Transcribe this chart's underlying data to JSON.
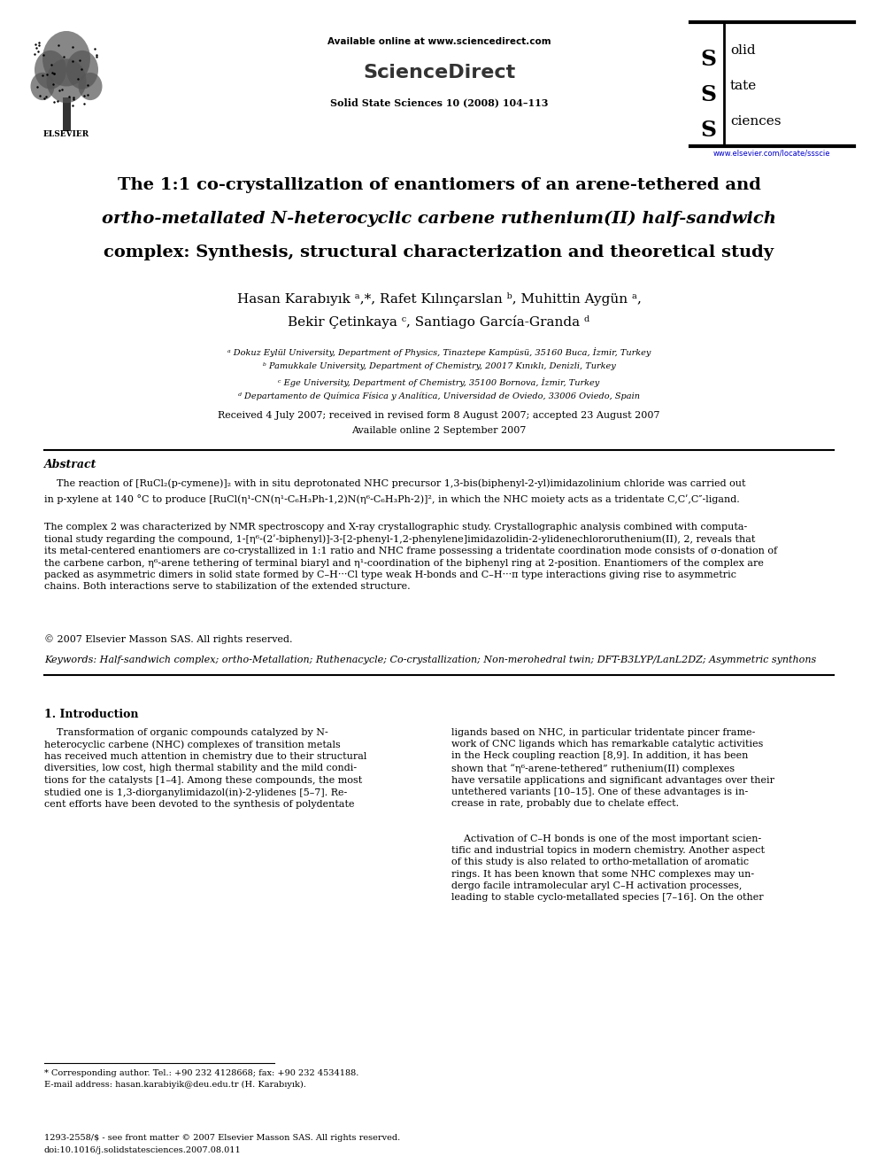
{
  "background_color": "#ffffff",
  "page_width": 9.92,
  "page_height": 13.23,
  "dpi": 100,
  "header": {
    "available_online_text": "Available online at www.sciencedirect.com",
    "sciencedirect_text": "ScienceDirect",
    "journal_text": "Solid State Sciences 10 (2008) 104–113",
    "elsevier_text": "ELSEVIER",
    "sss_url": "www.elsevier.com/locate/ssscie"
  },
  "title_line1": "The 1:1 co-crystallization of enantiomers of an arene-tethered and",
  "title_line2": "ortho-metallated N-heterocyclic carbene ruthenium(II) half-sandwich",
  "title_line3": "complex: Synthesis, structural characterization and theoretical study",
  "authors_line1": "Hasan Karabıyık ᵃ,*, Rafet Kılınçarslan ᵇ, Muhittin Aygün ᵃ,",
  "authors_line2": "Bekir Çetinkaya ᶜ, Santiago García-Granda ᵈ",
  "affiliations": [
    "ᵃ Dokuz Eylül University, Department of Physics, Tinaztepe Kampüsü, 35160 Buca, İzmir, Turkey",
    "ᵇ Pamukkale University, Department of Chemistry, 20017 Kınıklı, Denizli, Turkey",
    "ᶜ Ege University, Department of Chemistry, 35100 Bornova, İzmir, Turkey",
    "ᵈ Departamento de Química Física y Analítica, Universidad de Oviedo, 33006 Oviedo, Spain"
  ],
  "received_text": "Received 4 July 2007; received in revised form 8 August 2007; accepted 23 August 2007",
  "available_text": "Available online 2 September 2007",
  "abstract_title": "Abstract",
  "abstract_p1_indent": "    The reaction of [RuCl₂(p-cymene)]₂ with in situ deprotonated NHC precursor 1,3-bis(biphenyl-2-yl)imidazolinium chloride was carried out",
  "abstract_p1_line2": "in p-xylene at 140 °C to produce [RuCl(η¹-CN(η¹-C₆H₃Ph-1,2)N(η⁶-C₆H₃Ph-2)]², in which the NHC moiety acts as a tridentate C,Cʹ,C″-ligand.",
  "abstract_p2": "The complex 2 was characterized by NMR spectroscopy and X-ray crystallographic study. Crystallographic analysis combined with computa-\ntional study regarding the compound, 1-[η⁶-(2ʹ-biphenyl)]-3-[2-phenyl-1,2-phenylene]imidazolidin-2-ylidenechlororuthenium(II), 2, reveals that\nits metal-centered enantiomers are co-crystallized in 1:1 ratio and NHC frame possessing a tridentate coordination mode consists of σ-donation of\nthe carbene carbon, η⁶-arene tethering of terminal biaryl and η¹-coordination of the biphenyl ring at 2-position. Enantiomers of the complex are\npacked as asymmetric dimers in solid state formed by C–H···Cl type weak H-bonds and C–H···π type interactions giving rise to asymmetric\nchains. Both interactions serve to stabilization of the extended structure.",
  "abstract_copyright": "© 2007 Elsevier Masson SAS. All rights reserved.",
  "keywords_label": "Keywords: ",
  "keywords_body": "Half-sandwich complex; ortho-Metallation; Ruthenacycle; Co-crystallization; Non-merohedral twin; DFT-B3LYP/LanL2DZ; Asymmetric synthons",
  "intro_title": "1. Introduction",
  "intro_col1": "    Transformation of organic compounds catalyzed by N-\nheterocyclic carbene (NHC) complexes of transition metals\nhas received much attention in chemistry due to their structural\ndiversities, low cost, high thermal stability and the mild condi-\ntions for the catalysts [1–4]. Among these compounds, the most\nstudied one is 1,3-diorganylimidazol(in)-2-ylidenes [5–7]. Re-\ncent efforts have been devoted to the synthesis of polydentate",
  "intro_col2a": "ligands based on NHC, in particular tridentate pincer frame-\nwork of CNC ligands which has remarkable catalytic activities\nin the Heck coupling reaction [8,9]. In addition, it has been\nshown that “η⁶-arene-tethered” ruthenium(II) complexes\nhave versatile applications and significant advantages over their\nuntethered variants [10–15]. One of these advantages is in-\ncrease in rate, probably due to chelate effect.",
  "intro_col2b": "    Activation of C–H bonds is one of the most important scien-\ntific and industrial topics in modern chemistry. Another aspect\nof this study is also related to ortho-metallation of aromatic\nrings. It has been known that some NHC complexes may un-\ndergo facile intramolecular aryl C–H activation processes,\nleading to stable cyclo-metallated species [7–16]. On the other",
  "footnote_line1": "* Corresponding author. Tel.: +90 232 4128668; fax: +90 232 4534188.",
  "footnote_line2": "E-mail address: hasan.karabiyik@deu.edu.tr (H. Karabıyık).",
  "footer_line1": "1293-2558/$ - see front matter © 2007 Elsevier Masson SAS. All rights reserved.",
  "footer_line2": "doi:10.1016/j.solidstatesciences.2007.08.011"
}
